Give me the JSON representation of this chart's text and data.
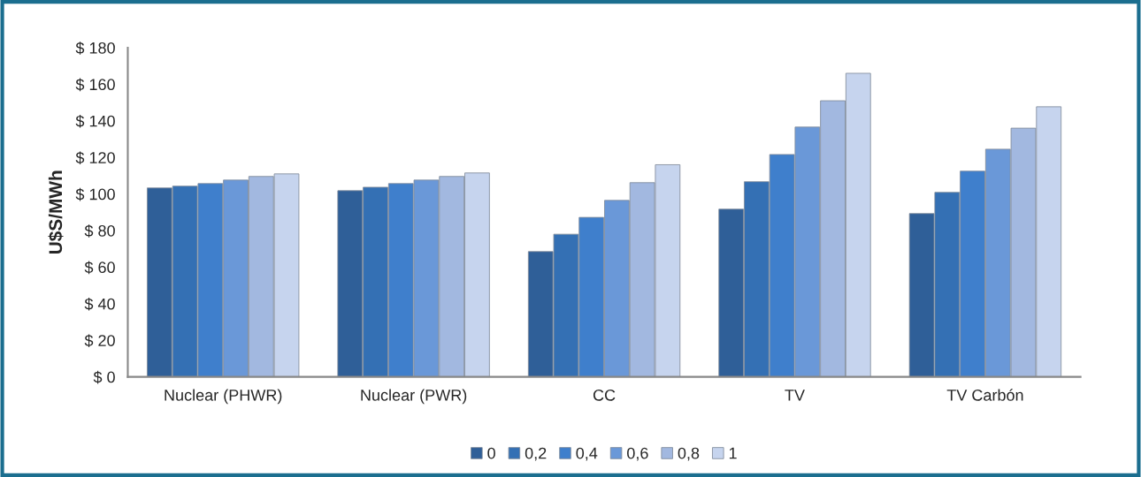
{
  "chart_data": {
    "type": "bar",
    "ylabel": "U$S/MWh",
    "categories": [
      "Nuclear (PHWR)",
      "Nuclear (PWR)",
      "CC",
      "TV",
      "TV Carbón"
    ],
    "series": [
      {
        "name": "0",
        "color": "#2f5f98",
        "values": [
          103.3,
          101.8,
          68.5,
          91.7,
          89.3
        ]
      },
      {
        "name": "0,2",
        "color": "#3470b4",
        "values": [
          104.3,
          103.7,
          78,
          106.7,
          100.9
        ]
      },
      {
        "name": "0,4",
        "color": "#3f7fcc",
        "values": [
          105.7,
          105.7,
          87.2,
          121.6,
          112.5
        ]
      },
      {
        "name": "0,6",
        "color": "#6a98d8",
        "values": [
          107.6,
          107.6,
          96.5,
          136.6,
          124.5
        ]
      },
      {
        "name": "0,8",
        "color": "#a2b8e0",
        "values": [
          109.6,
          109.6,
          106.2,
          151,
          136
        ]
      },
      {
        "name": "1",
        "color": "#c6d4ee",
        "values": [
          111,
          111.5,
          116,
          166,
          147.7
        ]
      }
    ],
    "ylim": [
      0,
      180
    ],
    "yticks": [
      {
        "value": 0,
        "label": "$ 0"
      },
      {
        "value": 20,
        "label": "$ 20"
      },
      {
        "value": 40,
        "label": "$ 40"
      },
      {
        "value": 60,
        "label": "$ 60"
      },
      {
        "value": 80,
        "label": "$ 80"
      },
      {
        "value": 100,
        "label": "$ 100"
      },
      {
        "value": 120,
        "label": "$ 120"
      },
      {
        "value": 140,
        "label": "$ 140"
      },
      {
        "value": 160,
        "label": "$ 160"
      },
      {
        "value": 180,
        "label": "$ 180"
      }
    ],
    "grid": false,
    "legend": "bottom"
  }
}
